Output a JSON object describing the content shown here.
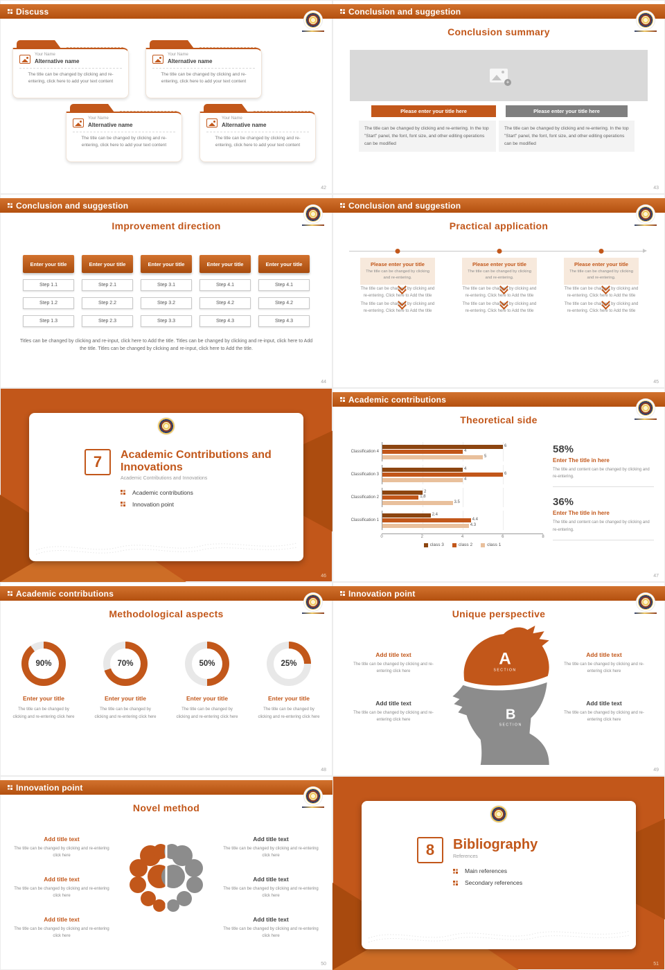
{
  "theme": {
    "accent": "#c2571a",
    "accent_dark": "#a84a0e",
    "gray_button": "#7f7f7f",
    "placeholder_gray": "#d9d9d9"
  },
  "slides": {
    "discuss": {
      "header": "Discuss",
      "page": "42",
      "card": {
        "name_label": "Your Name",
        "alt_name": "Alternative name",
        "body": "The title can be changed by clicking and re-entering, click here to add your text content"
      }
    },
    "conclusion_summary": {
      "header": "Conclusion and suggestion",
      "page": "43",
      "title": "Conclusion summary",
      "buttons": [
        "Please enter your title here",
        "Please enter your title here"
      ],
      "texts": [
        "The title can be changed by clicking and re-entering. In the top \"Start\" panel, the font, font size, and other editing operations can be modified",
        "The title can be changed by clicking and re-entering. In the top \"Start\" panel, the font, font size, and other editing operations can be modified"
      ]
    },
    "improvement": {
      "header": "Conclusion and suggestion",
      "page": "44",
      "title": "Improvement direction",
      "button_label": "Enter your title",
      "columns": [
        [
          "Step 1.1",
          "Step 1.2",
          "Step 1.3"
        ],
        [
          "Step 2.1",
          "Step 2.2",
          "Step 2.3"
        ],
        [
          "Step 3.1",
          "Step 3.2",
          "Step 3.3"
        ],
        [
          "Step 4.1",
          "Step 4.2",
          "Step 4.3"
        ],
        [
          "Step 4.1",
          "Step 4.2",
          "Step 4.3"
        ]
      ],
      "caption": "Titles can be changed by clicking and re-input, click here to Add the title. Titles can be changed by clicking and re-input, click here to Add the title. Titles can be changed by clicking and re-input, click here to Add the title."
    },
    "practical": {
      "header": "Conclusion and suggestion",
      "page": "45",
      "title": "Practical application",
      "item_title": "Please enter your title",
      "item_sub": "The title can be changed by clicking and re-entering.",
      "item_text": "The title can be changed by clicking and re-entering. Click here to Add the title"
    },
    "cover7": {
      "page": "46",
      "number": "7",
      "title": "Academic Contributions and Innovations",
      "subtitle": "Academic Contributions and Innovations",
      "bullets": [
        "Academic contributions",
        "Innovation point"
      ]
    },
    "theoretical": {
      "header": "Academic contributions",
      "page": "47",
      "title": "Theoretical side",
      "stats": [
        {
          "pct": "58%",
          "title": "Enter The title in here",
          "text": "The title and content can be changed by clicking and re-entering."
        },
        {
          "pct": "36%",
          "title": "Enter The title in here",
          "text": "The title and content can be changed by clicking and re-entering."
        }
      ]
    },
    "methodological": {
      "header": "Academic contributions",
      "page": "48",
      "title": "Methodological aspects",
      "item_title": "Enter your title",
      "item_text": "The title can be changed by clicking and re-entering click here"
    },
    "unique": {
      "header": "Innovation point",
      "page": "49",
      "title": "Unique perspective",
      "section_a": "A",
      "section_b": "B",
      "section_label": "SECTION",
      "item_title": "Add title text",
      "item_text": "The title can be changed by clicking and re-entering click here"
    },
    "novel": {
      "header": "Innovation point",
      "page": "50",
      "title": "Novel method",
      "item_title": "Add title text",
      "item_text": "The title can be changed by clicking and re-entering click here"
    },
    "cover8": {
      "page": "51",
      "number": "8",
      "title": "Bibliography",
      "subtitle": "References",
      "bullets": [
        "Main references",
        "Secondary references"
      ]
    }
  },
  "chart_data": [
    {
      "type": "bar",
      "orientation": "horizontal",
      "title": "Theoretical side",
      "categories": [
        "Classification 1",
        "Classification 2",
        "Classification 3",
        "Classification 4"
      ],
      "series": [
        {
          "name": "class 3",
          "color": "#8c4510",
          "values": [
            2.4,
            2,
            4,
            6
          ]
        },
        {
          "name": "class 2",
          "color": "#c2571a",
          "values": [
            4.4,
            1.8,
            6,
            4
          ]
        },
        {
          "name": "class 1",
          "color": "#e9c09c",
          "values": [
            4.3,
            3.5,
            4,
            5
          ]
        }
      ],
      "xlim": [
        0,
        8
      ],
      "xticks": [
        "0",
        "2",
        "4",
        "6",
        "8"
      ],
      "grid": true,
      "legend_position": "bottom"
    },
    {
      "type": "pie",
      "variant": "donut-set",
      "title": "Methodological aspects",
      "labels": [
        "90%",
        "70%",
        "50%",
        "25%"
      ],
      "values": [
        90,
        70,
        50,
        25
      ]
    }
  ]
}
